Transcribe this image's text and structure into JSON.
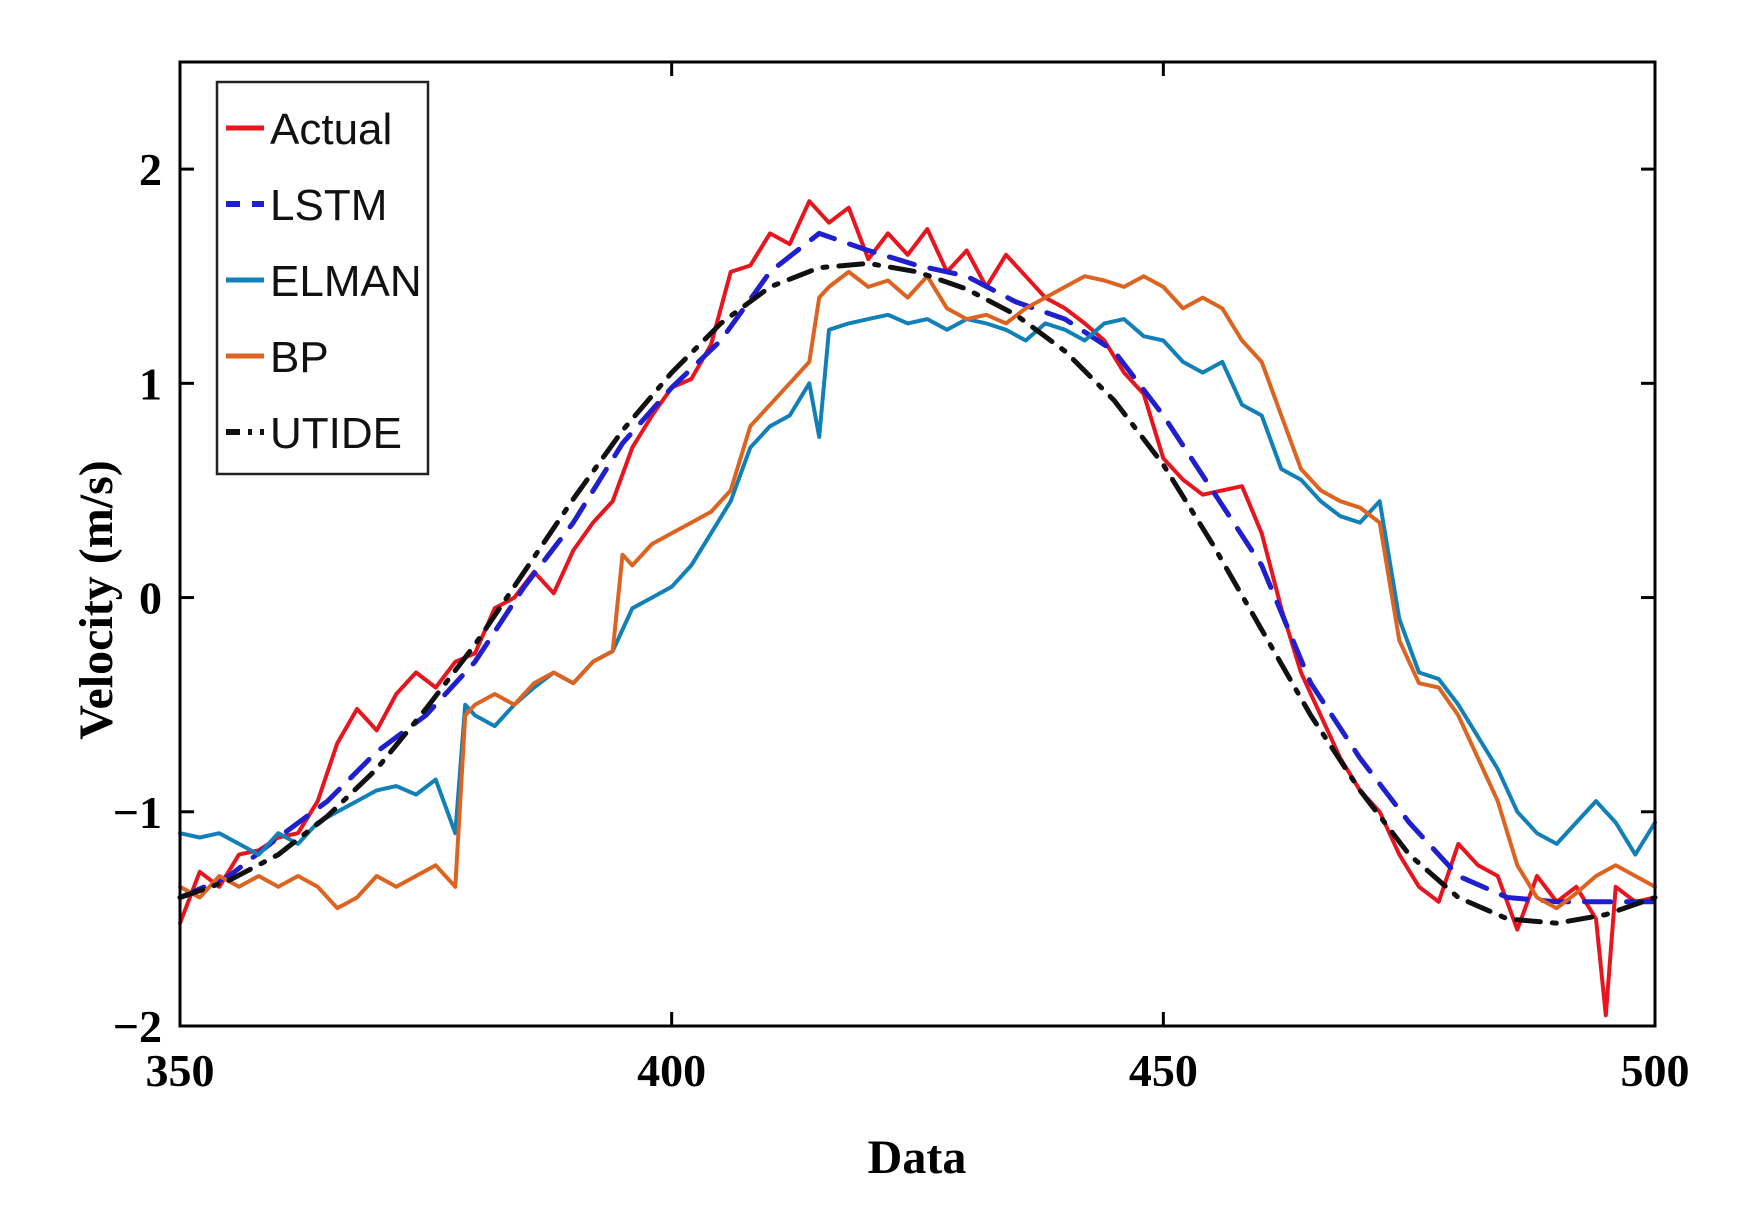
{
  "chart_data": {
    "type": "line",
    "title": "",
    "xlabel": "Data",
    "ylabel": "Velocity (m/s)",
    "xlim": [
      350,
      500
    ],
    "ylim": [
      -2,
      2.5
    ],
    "x_ticks": [
      350,
      400,
      450,
      500
    ],
    "y_ticks": [
      -2,
      -1,
      0,
      1,
      2
    ],
    "x_tick_labels": [
      "350",
      "400",
      "450",
      "500"
    ],
    "y_tick_labels": [
      "−2",
      "−1",
      "0",
      "1",
      "2"
    ],
    "grid": false,
    "legend_position": "top-left",
    "series": [
      {
        "name": "Actual",
        "color": "#e8141e",
        "dash": "solid",
        "x": [
          350,
          352,
          354,
          356,
          358,
          360,
          362,
          364,
          366,
          368,
          370,
          372,
          374,
          376,
          378,
          380,
          382,
          384,
          386,
          388,
          390,
          392,
          394,
          396,
          398,
          400,
          402,
          404,
          406,
          408,
          410,
          412,
          414,
          416,
          418,
          420,
          422,
          424,
          426,
          428,
          430,
          432,
          434,
          436,
          438,
          440,
          442,
          444,
          446,
          448,
          450,
          452,
          454,
          456,
          458,
          460,
          462,
          464,
          466,
          468,
          470,
          472,
          474,
          476,
          478,
          480,
          482,
          484,
          486,
          488,
          490,
          492,
          494,
          495,
          496,
          498,
          500
        ],
        "y": [
          -1.52,
          -1.28,
          -1.35,
          -1.2,
          -1.18,
          -1.12,
          -1.1,
          -0.95,
          -0.68,
          -0.52,
          -0.62,
          -0.45,
          -0.35,
          -0.42,
          -0.3,
          -0.26,
          -0.05,
          0.0,
          0.12,
          0.02,
          0.22,
          0.35,
          0.45,
          0.7,
          0.85,
          0.98,
          1.02,
          1.18,
          1.52,
          1.55,
          1.7,
          1.65,
          1.85,
          1.75,
          1.82,
          1.58,
          1.7,
          1.6,
          1.72,
          1.52,
          1.62,
          1.45,
          1.6,
          1.5,
          1.4,
          1.35,
          1.28,
          1.2,
          1.05,
          0.95,
          0.65,
          0.55,
          0.48,
          0.5,
          0.52,
          0.3,
          -0.05,
          -0.35,
          -0.55,
          -0.75,
          -0.9,
          -1.0,
          -1.2,
          -1.35,
          -1.42,
          -1.15,
          -1.25,
          -1.3,
          -1.55,
          -1.3,
          -1.42,
          -1.35,
          -1.5,
          -1.95,
          -1.35,
          -1.42,
          -1.4
        ]
      },
      {
        "name": "LSTM",
        "color": "#1f1fcf",
        "dash": "long",
        "x": [
          350,
          355,
          360,
          365,
          370,
          375,
          380,
          385,
          390,
          395,
          400,
          405,
          410,
          415,
          420,
          425,
          430,
          435,
          440,
          445,
          450,
          455,
          460,
          465,
          470,
          475,
          480,
          485,
          490,
          495,
          500
        ],
        "y": [
          -1.4,
          -1.3,
          -1.12,
          -0.95,
          -0.72,
          -0.55,
          -0.3,
          0.05,
          0.35,
          0.72,
          0.98,
          1.2,
          1.52,
          1.7,
          1.62,
          1.55,
          1.5,
          1.38,
          1.3,
          1.15,
          0.85,
          0.5,
          0.15,
          -0.4,
          -0.75,
          -1.05,
          -1.3,
          -1.4,
          -1.42,
          -1.42,
          -1.42
        ]
      },
      {
        "name": "ELMAN",
        "color": "#1280b8",
        "dash": "solid",
        "x": [
          350,
          352,
          354,
          356,
          358,
          360,
          362,
          364,
          366,
          368,
          370,
          372,
          374,
          376,
          378,
          379,
          380,
          382,
          384,
          386,
          388,
          390,
          392,
          394,
          396,
          398,
          400,
          402,
          404,
          406,
          408,
          410,
          412,
          414,
          415,
          416,
          418,
          420,
          422,
          424,
          426,
          428,
          430,
          432,
          434,
          436,
          438,
          440,
          442,
          444,
          446,
          448,
          450,
          452,
          454,
          456,
          458,
          460,
          462,
          464,
          466,
          468,
          470,
          472,
          474,
          476,
          478,
          480,
          482,
          484,
          486,
          488,
          490,
          492,
          494,
          496,
          498,
          500
        ],
        "y": [
          -1.1,
          -1.12,
          -1.1,
          -1.15,
          -1.2,
          -1.1,
          -1.15,
          -1.05,
          -1.0,
          -0.95,
          -0.9,
          -0.88,
          -0.92,
          -0.85,
          -1.1,
          -0.5,
          -0.55,
          -0.6,
          -0.5,
          -0.42,
          -0.35,
          -0.4,
          -0.3,
          -0.25,
          -0.05,
          0.0,
          0.05,
          0.15,
          0.3,
          0.45,
          0.7,
          0.8,
          0.85,
          1.0,
          0.75,
          1.25,
          1.28,
          1.3,
          1.32,
          1.28,
          1.3,
          1.25,
          1.3,
          1.28,
          1.25,
          1.2,
          1.28,
          1.25,
          1.2,
          1.28,
          1.3,
          1.22,
          1.2,
          1.1,
          1.05,
          1.1,
          0.9,
          0.85,
          0.6,
          0.55,
          0.45,
          0.38,
          0.35,
          0.45,
          -0.1,
          -0.35,
          -0.38,
          -0.5,
          -0.65,
          -0.8,
          -1.0,
          -1.1,
          -1.15,
          -1.05,
          -0.95,
          -1.05,
          -1.2,
          -1.05
        ]
      },
      {
        "name": "BP",
        "color": "#dc6420",
        "dash": "solid",
        "x": [
          350,
          352,
          354,
          356,
          358,
          360,
          362,
          364,
          366,
          368,
          370,
          372,
          374,
          376,
          378,
          379,
          380,
          382,
          384,
          386,
          388,
          390,
          392,
          394,
          395,
          396,
          398,
          400,
          402,
          404,
          406,
          408,
          410,
          412,
          414,
          415,
          416,
          418,
          420,
          422,
          424,
          426,
          428,
          430,
          432,
          434,
          436,
          438,
          440,
          442,
          444,
          446,
          448,
          450,
          452,
          454,
          456,
          458,
          460,
          462,
          464,
          466,
          468,
          470,
          472,
          474,
          476,
          478,
          480,
          482,
          484,
          486,
          488,
          490,
          492,
          494,
          496,
          498,
          500
        ],
        "y": [
          -1.35,
          -1.4,
          -1.3,
          -1.35,
          -1.3,
          -1.35,
          -1.3,
          -1.35,
          -1.45,
          -1.4,
          -1.3,
          -1.35,
          -1.3,
          -1.25,
          -1.35,
          -0.55,
          -0.5,
          -0.45,
          -0.5,
          -0.4,
          -0.35,
          -0.4,
          -0.3,
          -0.25,
          0.2,
          0.15,
          0.25,
          0.3,
          0.35,
          0.4,
          0.5,
          0.8,
          0.9,
          1.0,
          1.1,
          1.4,
          1.45,
          1.52,
          1.45,
          1.48,
          1.4,
          1.5,
          1.35,
          1.3,
          1.32,
          1.28,
          1.35,
          1.4,
          1.45,
          1.5,
          1.48,
          1.45,
          1.5,
          1.45,
          1.35,
          1.4,
          1.35,
          1.2,
          1.1,
          0.85,
          0.6,
          0.5,
          0.45,
          0.42,
          0.35,
          -0.2,
          -0.4,
          -0.42,
          -0.55,
          -0.75,
          -0.95,
          -1.25,
          -1.4,
          -1.45,
          -1.38,
          -1.3,
          -1.25,
          -1.3,
          -1.35
        ]
      },
      {
        "name": "UTIDE",
        "color": "#111111",
        "dash": "dashdot",
        "x": [
          350,
          355,
          360,
          365,
          370,
          375,
          380,
          385,
          390,
          395,
          400,
          405,
          410,
          415,
          420,
          425,
          430,
          435,
          440,
          445,
          450,
          455,
          460,
          465,
          470,
          475,
          480,
          485,
          490,
          495,
          500
        ],
        "y": [
          -1.4,
          -1.32,
          -1.2,
          -1.02,
          -0.8,
          -0.52,
          -0.22,
          0.12,
          0.46,
          0.78,
          1.05,
          1.28,
          1.45,
          1.54,
          1.56,
          1.52,
          1.44,
          1.32,
          1.15,
          0.92,
          0.62,
          0.25,
          -0.15,
          -0.55,
          -0.9,
          -1.2,
          -1.4,
          -1.5,
          -1.52,
          -1.48,
          -1.4
        ]
      }
    ]
  }
}
